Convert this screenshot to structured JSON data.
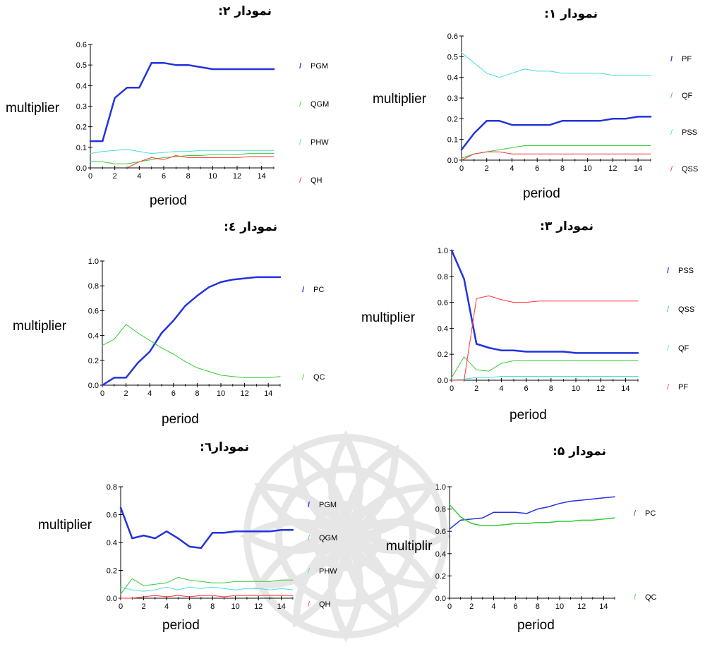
{
  "chart_data": [
    {
      "id": "c2",
      "type": "line",
      "title": "نمودار ۲:",
      "xlabel": "period",
      "ylabel": "multiplier",
      "xlim": [
        0,
        15
      ],
      "ylim": [
        0,
        0.6
      ],
      "xticks": [
        0,
        2,
        4,
        6,
        8,
        10,
        12,
        14
      ],
      "yticks": [
        0,
        0.1,
        0.2,
        0.3,
        0.4,
        0.5,
        0.6
      ],
      "legend_position": "right",
      "series": [
        {
          "name": "PGM",
          "color": "#2233dd",
          "width": 2.5,
          "x": [
            0,
            1,
            2,
            3,
            4,
            5,
            6,
            7,
            8,
            9,
            10,
            11,
            12,
            13,
            14,
            15
          ],
          "y": [
            0.13,
            0.13,
            0.34,
            0.39,
            0.39,
            0.51,
            0.51,
            0.5,
            0.5,
            0.49,
            0.48,
            0.48,
            0.48,
            0.48,
            0.48,
            0.48
          ]
        },
        {
          "name": "QGM",
          "color": "#33cc33",
          "width": 1,
          "x": [
            0,
            1,
            2,
            3,
            4,
            5,
            6,
            7,
            8,
            9,
            10,
            11,
            12,
            13,
            14,
            15
          ],
          "y": [
            0.03,
            0.03,
            0.02,
            0.02,
            0.03,
            0.04,
            0.05,
            0.055,
            0.06,
            0.06,
            0.065,
            0.065,
            0.065,
            0.07,
            0.07,
            0.07
          ]
        },
        {
          "name": "PHW",
          "color": "#44dddd",
          "width": 1,
          "x": [
            0,
            1,
            2,
            3,
            4,
            5,
            6,
            7,
            8,
            9,
            10,
            11,
            12,
            13,
            14,
            15
          ],
          "y": [
            0.07,
            0.08,
            0.085,
            0.09,
            0.08,
            0.07,
            0.075,
            0.08,
            0.08,
            0.085,
            0.085,
            0.085,
            0.085,
            0.085,
            0.085,
            0.085
          ]
        },
        {
          "name": "QH",
          "color": "#ff3333",
          "width": 1,
          "x": [
            3,
            4,
            5,
            6,
            7,
            8,
            9,
            10,
            11,
            12,
            13,
            14,
            15
          ],
          "y": [
            0,
            0.03,
            0.05,
            0.04,
            0.06,
            0.05,
            0.05,
            0.05,
            0.05,
            0.05,
            0.055,
            0.055,
            0.055
          ]
        }
      ]
    },
    {
      "id": "c1",
      "type": "line",
      "title": "نمودار ۱:",
      "xlabel": "period",
      "ylabel": "multiplier",
      "xlim": [
        0,
        15
      ],
      "ylim": [
        0,
        0.6
      ],
      "xticks": [
        0,
        2,
        4,
        6,
        8,
        10,
        12,
        14
      ],
      "yticks": [
        0,
        0.1,
        0.2,
        0.3,
        0.4,
        0.5,
        0.6
      ],
      "legend_position": "right",
      "series": [
        {
          "name": "PF",
          "color": "#2233dd",
          "width": 2.5,
          "x": [
            0,
            1,
            2,
            3,
            4,
            5,
            6,
            7,
            8,
            9,
            10,
            11,
            12,
            13,
            14,
            15
          ],
          "y": [
            0.05,
            0.13,
            0.19,
            0.19,
            0.17,
            0.17,
            0.17,
            0.17,
            0.19,
            0.19,
            0.19,
            0.19,
            0.2,
            0.2,
            0.21,
            0.21
          ]
        },
        {
          "name": "QF",
          "color": "#33cc33",
          "width": 1,
          "x": [
            0,
            1,
            2,
            3,
            4,
            5,
            6,
            7,
            8,
            9,
            10,
            11,
            12,
            13,
            14,
            15
          ],
          "y": [
            0.01,
            0.03,
            0.04,
            0.05,
            0.06,
            0.07,
            0.07,
            0.07,
            0.07,
            0.07,
            0.07,
            0.07,
            0.07,
            0.07,
            0.07,
            0.07
          ]
        },
        {
          "name": "PSS",
          "color": "#44dddd",
          "width": 1,
          "x": [
            0,
            1,
            2,
            3,
            4,
            5,
            6,
            7,
            8,
            9,
            10,
            11,
            12,
            13,
            14,
            15
          ],
          "y": [
            0.52,
            0.47,
            0.42,
            0.4,
            0.42,
            0.44,
            0.43,
            0.43,
            0.42,
            0.42,
            0.42,
            0.42,
            0.41,
            0.41,
            0.41,
            0.41
          ]
        },
        {
          "name": "QSS",
          "color": "#ff3333",
          "width": 1,
          "x": [
            0,
            1,
            2,
            3,
            4,
            5,
            6,
            7,
            8,
            9,
            10,
            11,
            12,
            13,
            14,
            15
          ],
          "y": [
            0.0,
            0.03,
            0.04,
            0.04,
            0.03,
            0.03,
            0.03,
            0.03,
            0.03,
            0.03,
            0.03,
            0.03,
            0.03,
            0.03,
            0.03,
            0.03
          ]
        }
      ]
    },
    {
      "id": "c4",
      "type": "line",
      "title": "نمودار ٤:",
      "xlabel": "period",
      "ylabel": "multiplier",
      "xlim": [
        0,
        15
      ],
      "ylim": [
        0,
        1.0
      ],
      "xticks": [
        0,
        2,
        4,
        6,
        8,
        10,
        12,
        14
      ],
      "yticks": [
        0,
        0.2,
        0.4,
        0.6,
        0.8,
        1.0
      ],
      "legend_position": "right",
      "series": [
        {
          "name": "PC",
          "color": "#2233dd",
          "width": 2.5,
          "x": [
            0,
            1,
            2,
            3,
            4,
            5,
            6,
            7,
            8,
            9,
            10,
            11,
            12,
            13,
            14,
            15
          ],
          "y": [
            0.0,
            0.06,
            0.06,
            0.18,
            0.27,
            0.42,
            0.52,
            0.64,
            0.72,
            0.79,
            0.83,
            0.85,
            0.86,
            0.87,
            0.87,
            0.87
          ]
        },
        {
          "name": "QC",
          "color": "#33cc33",
          "width": 1,
          "x": [
            0,
            1,
            2,
            3,
            4,
            5,
            6,
            7,
            8,
            9,
            10,
            11,
            12,
            13,
            14,
            15
          ],
          "y": [
            0.32,
            0.37,
            0.49,
            0.42,
            0.36,
            0.3,
            0.25,
            0.19,
            0.14,
            0.11,
            0.08,
            0.07,
            0.06,
            0.06,
            0.06,
            0.07
          ]
        }
      ]
    },
    {
      "id": "c3",
      "type": "line",
      "title": "نمودار ۳:",
      "xlabel": "period",
      "ylabel": "multiplier",
      "xlim": [
        0,
        15
      ],
      "ylim": [
        0,
        1.0
      ],
      "xticks": [
        0,
        2,
        4,
        6,
        8,
        10,
        12,
        14
      ],
      "yticks": [
        0,
        0.2,
        0.4,
        0.6,
        0.8,
        1.0
      ],
      "legend_position": "right",
      "series": [
        {
          "name": "PSS",
          "color": "#2233dd",
          "width": 2.5,
          "x": [
            0,
            1,
            2,
            3,
            4,
            5,
            6,
            7,
            8,
            9,
            10,
            11,
            12,
            13,
            14,
            15
          ],
          "y": [
            1.0,
            0.78,
            0.28,
            0.25,
            0.23,
            0.23,
            0.22,
            0.22,
            0.22,
            0.22,
            0.21,
            0.21,
            0.21,
            0.21,
            0.21,
            0.21
          ]
        },
        {
          "name": "QSS",
          "color": "#33cc33",
          "width": 1,
          "x": [
            0,
            1,
            2,
            3,
            4,
            5,
            6,
            7,
            8,
            9,
            10,
            11,
            12,
            13,
            14,
            15
          ],
          "y": [
            0.02,
            0.18,
            0.08,
            0.07,
            0.13,
            0.15,
            0.15,
            0.15,
            0.15,
            0.15,
            0.15,
            0.15,
            0.15,
            0.15,
            0.15,
            0.15
          ]
        },
        {
          "name": "QF",
          "color": "#44dddd",
          "width": 1,
          "x": [
            0,
            1,
            2,
            3,
            4,
            5,
            6,
            7,
            8,
            9,
            10,
            11,
            12,
            13,
            14,
            15
          ],
          "y": [
            0.0,
            0.01,
            0.02,
            0.02,
            0.03,
            0.03,
            0.03,
            0.03,
            0.03,
            0.03,
            0.03,
            0.03,
            0.03,
            0.03,
            0.03,
            0.03
          ]
        },
        {
          "name": "PF",
          "color": "#ff3333",
          "width": 1,
          "x": [
            0,
            1,
            2,
            3,
            4,
            5,
            6,
            7,
            8,
            9,
            10,
            11,
            12,
            13,
            14,
            15
          ],
          "y": [
            0.0,
            0.0,
            0.63,
            0.65,
            0.62,
            0.6,
            0.6,
            0.61,
            0.61,
            0.61,
            0.61,
            0.61,
            0.61,
            0.61,
            0.61,
            0.61
          ]
        }
      ]
    },
    {
      "id": "c6",
      "type": "line",
      "title": "نمودار٦:",
      "xlabel": "period",
      "ylabel": "multiplier",
      "xlim": [
        0,
        15
      ],
      "ylim": [
        0,
        0.8
      ],
      "xticks": [
        0,
        2,
        4,
        6,
        8,
        10,
        12,
        14
      ],
      "yticks": [
        0,
        0.2,
        0.4,
        0.6,
        0.8
      ],
      "legend_position": "right",
      "series": [
        {
          "name": "PGM",
          "color": "#2233dd",
          "width": 2.5,
          "x": [
            0,
            1,
            2,
            3,
            4,
            5,
            6,
            7,
            8,
            9,
            10,
            11,
            12,
            13,
            14,
            15
          ],
          "y": [
            0.65,
            0.43,
            0.45,
            0.43,
            0.48,
            0.43,
            0.37,
            0.36,
            0.47,
            0.47,
            0.48,
            0.48,
            0.48,
            0.48,
            0.49,
            0.49
          ]
        },
        {
          "name": "QGM",
          "color": "#33cc33",
          "width": 1,
          "x": [
            0,
            1,
            2,
            3,
            4,
            5,
            6,
            7,
            8,
            9,
            10,
            11,
            12,
            13,
            14,
            15
          ],
          "y": [
            0.03,
            0.14,
            0.09,
            0.1,
            0.11,
            0.15,
            0.13,
            0.12,
            0.11,
            0.11,
            0.12,
            0.12,
            0.12,
            0.12,
            0.13,
            0.13
          ]
        },
        {
          "name": "PHW",
          "color": "#44dddd",
          "width": 1,
          "x": [
            0,
            1,
            2,
            3,
            4,
            5,
            6,
            7,
            8,
            9,
            10,
            11,
            12,
            13,
            14,
            15
          ],
          "y": [
            0.08,
            0.06,
            0.05,
            0.06,
            0.08,
            0.06,
            0.08,
            0.07,
            0.08,
            0.07,
            0.06,
            0.07,
            0.07,
            0.06,
            0.07,
            0.06
          ]
        },
        {
          "name": "QH",
          "color": "#ff3333",
          "width": 1,
          "x": [
            0,
            1,
            2,
            3,
            4,
            5,
            6,
            7,
            8,
            9,
            10,
            11,
            12,
            13,
            14,
            15
          ],
          "y": [
            0.0,
            0.0,
            0.01,
            0.02,
            0.01,
            0.02,
            0.01,
            0.02,
            0.02,
            0.01,
            0.02,
            0.02,
            0.02,
            0.02,
            0.02,
            0.02
          ]
        }
      ]
    },
    {
      "id": "c5",
      "type": "line",
      "title": "نمودار ۵:",
      "xlabel": "period",
      "ylabel": "multiplir",
      "xlim": [
        0,
        15
      ],
      "ylim": [
        0,
        1.0
      ],
      "xticks": [
        0,
        2,
        4,
        6,
        8,
        10,
        12,
        14
      ],
      "yticks": [
        0,
        0.2,
        0.4,
        0.6,
        0.8,
        1.0
      ],
      "legend_position": "right",
      "series": [
        {
          "name": "PC",
          "color": "#2233dd",
          "width": 1.5,
          "x": [
            0,
            1,
            2,
            3,
            4,
            5,
            6,
            7,
            8,
            9,
            10,
            11,
            12,
            13,
            14,
            15
          ],
          "y": [
            0.62,
            0.7,
            0.71,
            0.72,
            0.77,
            0.77,
            0.77,
            0.76,
            0.8,
            0.82,
            0.85,
            0.87,
            0.88,
            0.89,
            0.9,
            0.91
          ]
        },
        {
          "name": "QC",
          "color": "#33cc33",
          "width": 1.5,
          "x": [
            0,
            1,
            2,
            3,
            4,
            5,
            6,
            7,
            8,
            9,
            10,
            11,
            12,
            13,
            14,
            15
          ],
          "y": [
            0.84,
            0.73,
            0.67,
            0.65,
            0.65,
            0.66,
            0.67,
            0.67,
            0.68,
            0.68,
            0.69,
            0.69,
            0.7,
            0.7,
            0.71,
            0.72
          ]
        }
      ]
    }
  ]
}
